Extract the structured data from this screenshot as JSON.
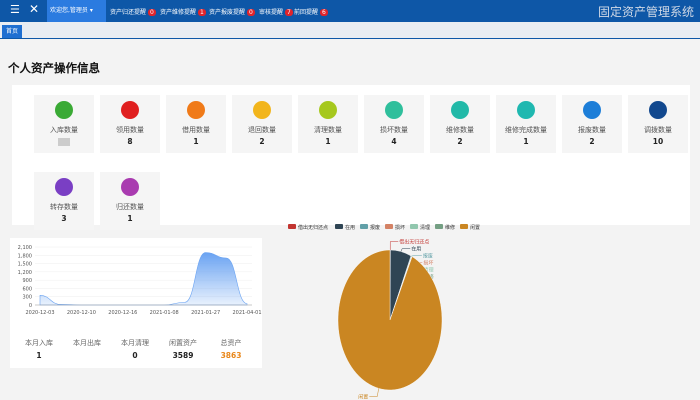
{
  "header": {
    "user": "欢迎您,管理员",
    "reminders": [
      {
        "label": "资产归还提醒",
        "count": 0
      },
      {
        "label": "资产维修提醒",
        "count": 1
      },
      {
        "label": "资产报废提醒",
        "count": 0
      },
      {
        "label": "审核提醒",
        "count": 7
      },
      {
        "label": "前回提醒",
        "count": 6
      }
    ],
    "system_title": "固定资产管理系统"
  },
  "tabs": [
    "首页"
  ],
  "section_title": "个人资产操作信息",
  "cards": [
    {
      "label": "入库数量"
    },
    {
      "label": "领用数量",
      "value": 8
    },
    {
      "label": "借用数量",
      "value": 1
    },
    {
      "label": "退回数量",
      "value": 2
    },
    {
      "label": "清理数量",
      "value": 1
    },
    {
      "label": "损坏数量",
      "value": 4
    },
    {
      "label": "维修数量",
      "value": 2
    },
    {
      "label": "维修完成数量",
      "value": 1
    },
    {
      "label": "报废数量",
      "value": 2
    },
    {
      "label": "调拨数量",
      "value": 10
    },
    {
      "label": "转存数量",
      "value": 3
    },
    {
      "label": "归还数量",
      "value": 1
    }
  ],
  "stats": [
    {
      "label": "本月入库",
      "value": 1
    },
    {
      "label": "本月出库"
    },
    {
      "label": "本月清理",
      "value": 0
    },
    {
      "label": "闲置资产",
      "value": 3589
    },
    {
      "label": "总资产",
      "value": 3863
    }
  ],
  "chart_data": [
    {
      "type": "area",
      "categories": [
        "2020-12-03",
        null,
        "2020-12-10",
        null,
        "2020-12-16",
        null,
        "2021-01-08",
        null,
        "2021-01-27",
        null,
        "2021-04-01"
      ],
      "values": [
        350,
        20,
        0,
        0,
        0,
        0,
        0,
        100,
        1900,
        1700,
        50
      ],
      "color": "#6aa3f2",
      "ylim": [
        0,
        2100
      ],
      "yticks": [
        0,
        300,
        600,
        900,
        {
          "value": 1200,
          "label": "1,200"
        },
        {
          "value": 1500,
          "label": "1,500"
        },
        {
          "value": 1800,
          "label": "1,800"
        },
        {
          "value": 2100,
          "label": "2,100"
        }
      ]
    },
    {
      "type": "pie",
      "categories": [
        "借出无归还点",
        "在用",
        "报废",
        "损坏",
        "清理",
        "维修",
        "闲置"
      ],
      "values": [
        5,
        250,
        8,
        4,
        1,
        2,
        3589
      ],
      "colors": [
        "#c23531",
        "#2f4554",
        "#61a0a8",
        "#d48265",
        "#91c7ae",
        "#749f83",
        "#ca8622"
      ]
    }
  ]
}
